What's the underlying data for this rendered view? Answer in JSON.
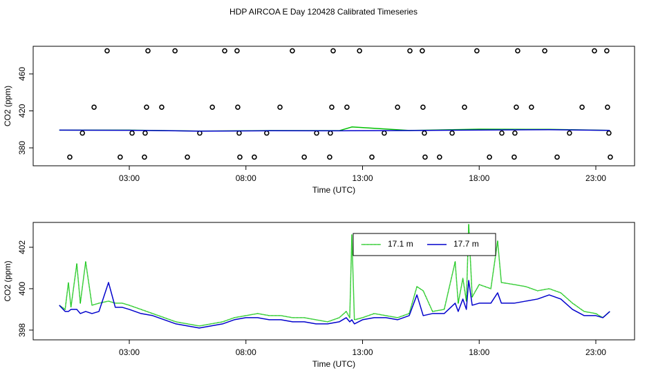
{
  "chart_data": [
    {
      "type": "scatter",
      "title": "HDP AIRCOA E  Day 120428  Calibrated Timeseries",
      "x_label": "Time (UTC)",
      "y_label": "CO2 (ppm)",
      "xlim": [
        -1.12,
        24.66
      ],
      "ylim": [
        360.6,
        489.9
      ],
      "xticks": [
        {
          "value": 3,
          "label": "03:00"
        },
        {
          "value": 8,
          "label": "08:00"
        },
        {
          "value": 13,
          "label": "13:00"
        },
        {
          "value": 18,
          "label": "18:00"
        },
        {
          "value": 23,
          "label": "23:00"
        }
      ],
      "yticks": [
        380,
        420,
        460
      ],
      "series": [
        {
          "type": "scatter",
          "color": "#000000",
          "x": [
            2.05,
            3.8,
            4.96,
            7.09,
            7.62,
            9.99,
            11.74,
            12.87,
            15.03,
            15.56,
            17.9,
            19.65,
            20.81,
            22.94,
            23.47,
            0.45,
            2.61,
            3.65,
            5.49,
            7.74,
            8.36,
            10.5,
            11.59,
            13.4,
            15.68,
            16.3,
            18.44,
            19.5,
            21.34,
            23.62,
            1.49,
            3.74,
            4.39,
            6.56,
            7.65,
            9.46,
            11.68,
            12.33,
            14.5,
            15.59,
            17.37,
            19.59,
            20.24,
            22.41,
            23.5,
            0.99,
            3.12,
            3.68,
            6.02,
            7.71,
            8.89,
            11.03,
            11.62,
            13.93,
            15.65,
            16.84,
            18.97,
            19.53,
            21.87,
            23.56
          ],
          "values": [
            485,
            485,
            485,
            485,
            485,
            485,
            485,
            485,
            485,
            485,
            485,
            485,
            485,
            485,
            485,
            370,
            370,
            370,
            370,
            370,
            370,
            370,
            370,
            370,
            370,
            370,
            370,
            370,
            370,
            370,
            424,
            424,
            424,
            424,
            424,
            424,
            424,
            424,
            424,
            424,
            424,
            424,
            424,
            424,
            424,
            396,
            396,
            396,
            396,
            396,
            396,
            396,
            396,
            396,
            396,
            396,
            396,
            396,
            396,
            396
          ]
        },
        {
          "type": "line",
          "color": "#00c000",
          "x": [
            0,
            3,
            6,
            9,
            12,
            12.54,
            15,
            18,
            21,
            23.6
          ],
          "values": [
            399.2,
            399.2,
            398.2,
            398.7,
            398.6,
            402.6,
            398.8,
            400.2,
            400.0,
            398.9
          ]
        },
        {
          "type": "line",
          "color": "#0000cc",
          "x": [
            0,
            3,
            6,
            9,
            12,
            12.54,
            15,
            18,
            21,
            23.6
          ],
          "values": [
            399.2,
            399.0,
            398.1,
            398.5,
            398.4,
            398.5,
            398.7,
            399.3,
            399.7,
            398.9
          ]
        }
      ]
    },
    {
      "type": "line",
      "x_label": "Time (UTC)",
      "y_label": "CO2 (ppm)",
      "xlim": [
        -1.12,
        24.66
      ],
      "ylim": [
        397.53,
        403.2
      ],
      "xticks": [
        {
          "value": 3,
          "label": "03:00"
        },
        {
          "value": 8,
          "label": "08:00"
        },
        {
          "value": 13,
          "label": "13:00"
        },
        {
          "value": 18,
          "label": "18:00"
        },
        {
          "value": 23,
          "label": "23:00"
        }
      ],
      "yticks": [
        398,
        400,
        402
      ],
      "legend": "top",
      "x": [
        0,
        0.25,
        0.39,
        0.5,
        0.75,
        0.9,
        1.13,
        1.4,
        1.7,
        2.11,
        2.4,
        2.7,
        3,
        3.5,
        4,
        4.5,
        5,
        5.5,
        6,
        6.5,
        7,
        7.5,
        8,
        8.5,
        9,
        9.5,
        10,
        10.5,
        11,
        11.5,
        12,
        12.3,
        12.45,
        12.54,
        12.65,
        13,
        13.5,
        14,
        14.5,
        15,
        15.33,
        15.6,
        16,
        16.5,
        16.97,
        17.1,
        17.3,
        17.45,
        17.55,
        17.7,
        18,
        18.5,
        18.79,
        18.95,
        19.5,
        20,
        20.5,
        21,
        21.5,
        22,
        22.5,
        23,
        23.3,
        23.6
      ],
      "series": [
        {
          "name": "17.1 m",
          "color": "#00c000",
          "dash": true,
          "values": [
            399.2,
            399.0,
            400.3,
            399.1,
            401.2,
            399.3,
            401.3,
            399.2,
            399.3,
            399.4,
            399.3,
            399.3,
            399.2,
            399.0,
            398.8,
            398.6,
            398.4,
            398.3,
            398.2,
            398.3,
            398.4,
            398.6,
            398.7,
            398.8,
            398.7,
            398.7,
            398.6,
            398.6,
            398.5,
            398.4,
            398.6,
            398.9,
            398.6,
            402.6,
            398.5,
            398.6,
            398.8,
            398.7,
            398.6,
            398.8,
            400.1,
            399.9,
            398.9,
            399.0,
            401.3,
            399.3,
            400.5,
            399.4,
            403.1,
            399.6,
            400.2,
            400.0,
            402.3,
            400.3,
            400.2,
            400.1,
            399.9,
            400.0,
            399.8,
            399.3,
            398.9,
            398.8,
            398.6,
            398.9
          ]
        },
        {
          "name": "17.7 m",
          "color": "#0000cc",
          "values": [
            399.2,
            398.9,
            398.9,
            399.0,
            399.0,
            398.8,
            398.9,
            398.8,
            398.9,
            400.3,
            399.1,
            399.1,
            399.0,
            398.8,
            398.7,
            398.5,
            398.3,
            398.2,
            398.1,
            398.2,
            398.3,
            398.5,
            398.6,
            398.6,
            398.5,
            398.5,
            398.4,
            398.4,
            398.3,
            398.3,
            398.4,
            398.6,
            398.4,
            398.5,
            398.3,
            398.5,
            398.6,
            398.6,
            398.5,
            398.7,
            399.7,
            398.7,
            398.8,
            398.8,
            399.3,
            398.9,
            399.5,
            399.0,
            400.4,
            399.2,
            399.3,
            399.3,
            399.8,
            399.3,
            399.3,
            399.4,
            399.5,
            399.7,
            399.5,
            399.0,
            398.7,
            398.7,
            398.6,
            398.9
          ]
        }
      ]
    }
  ]
}
